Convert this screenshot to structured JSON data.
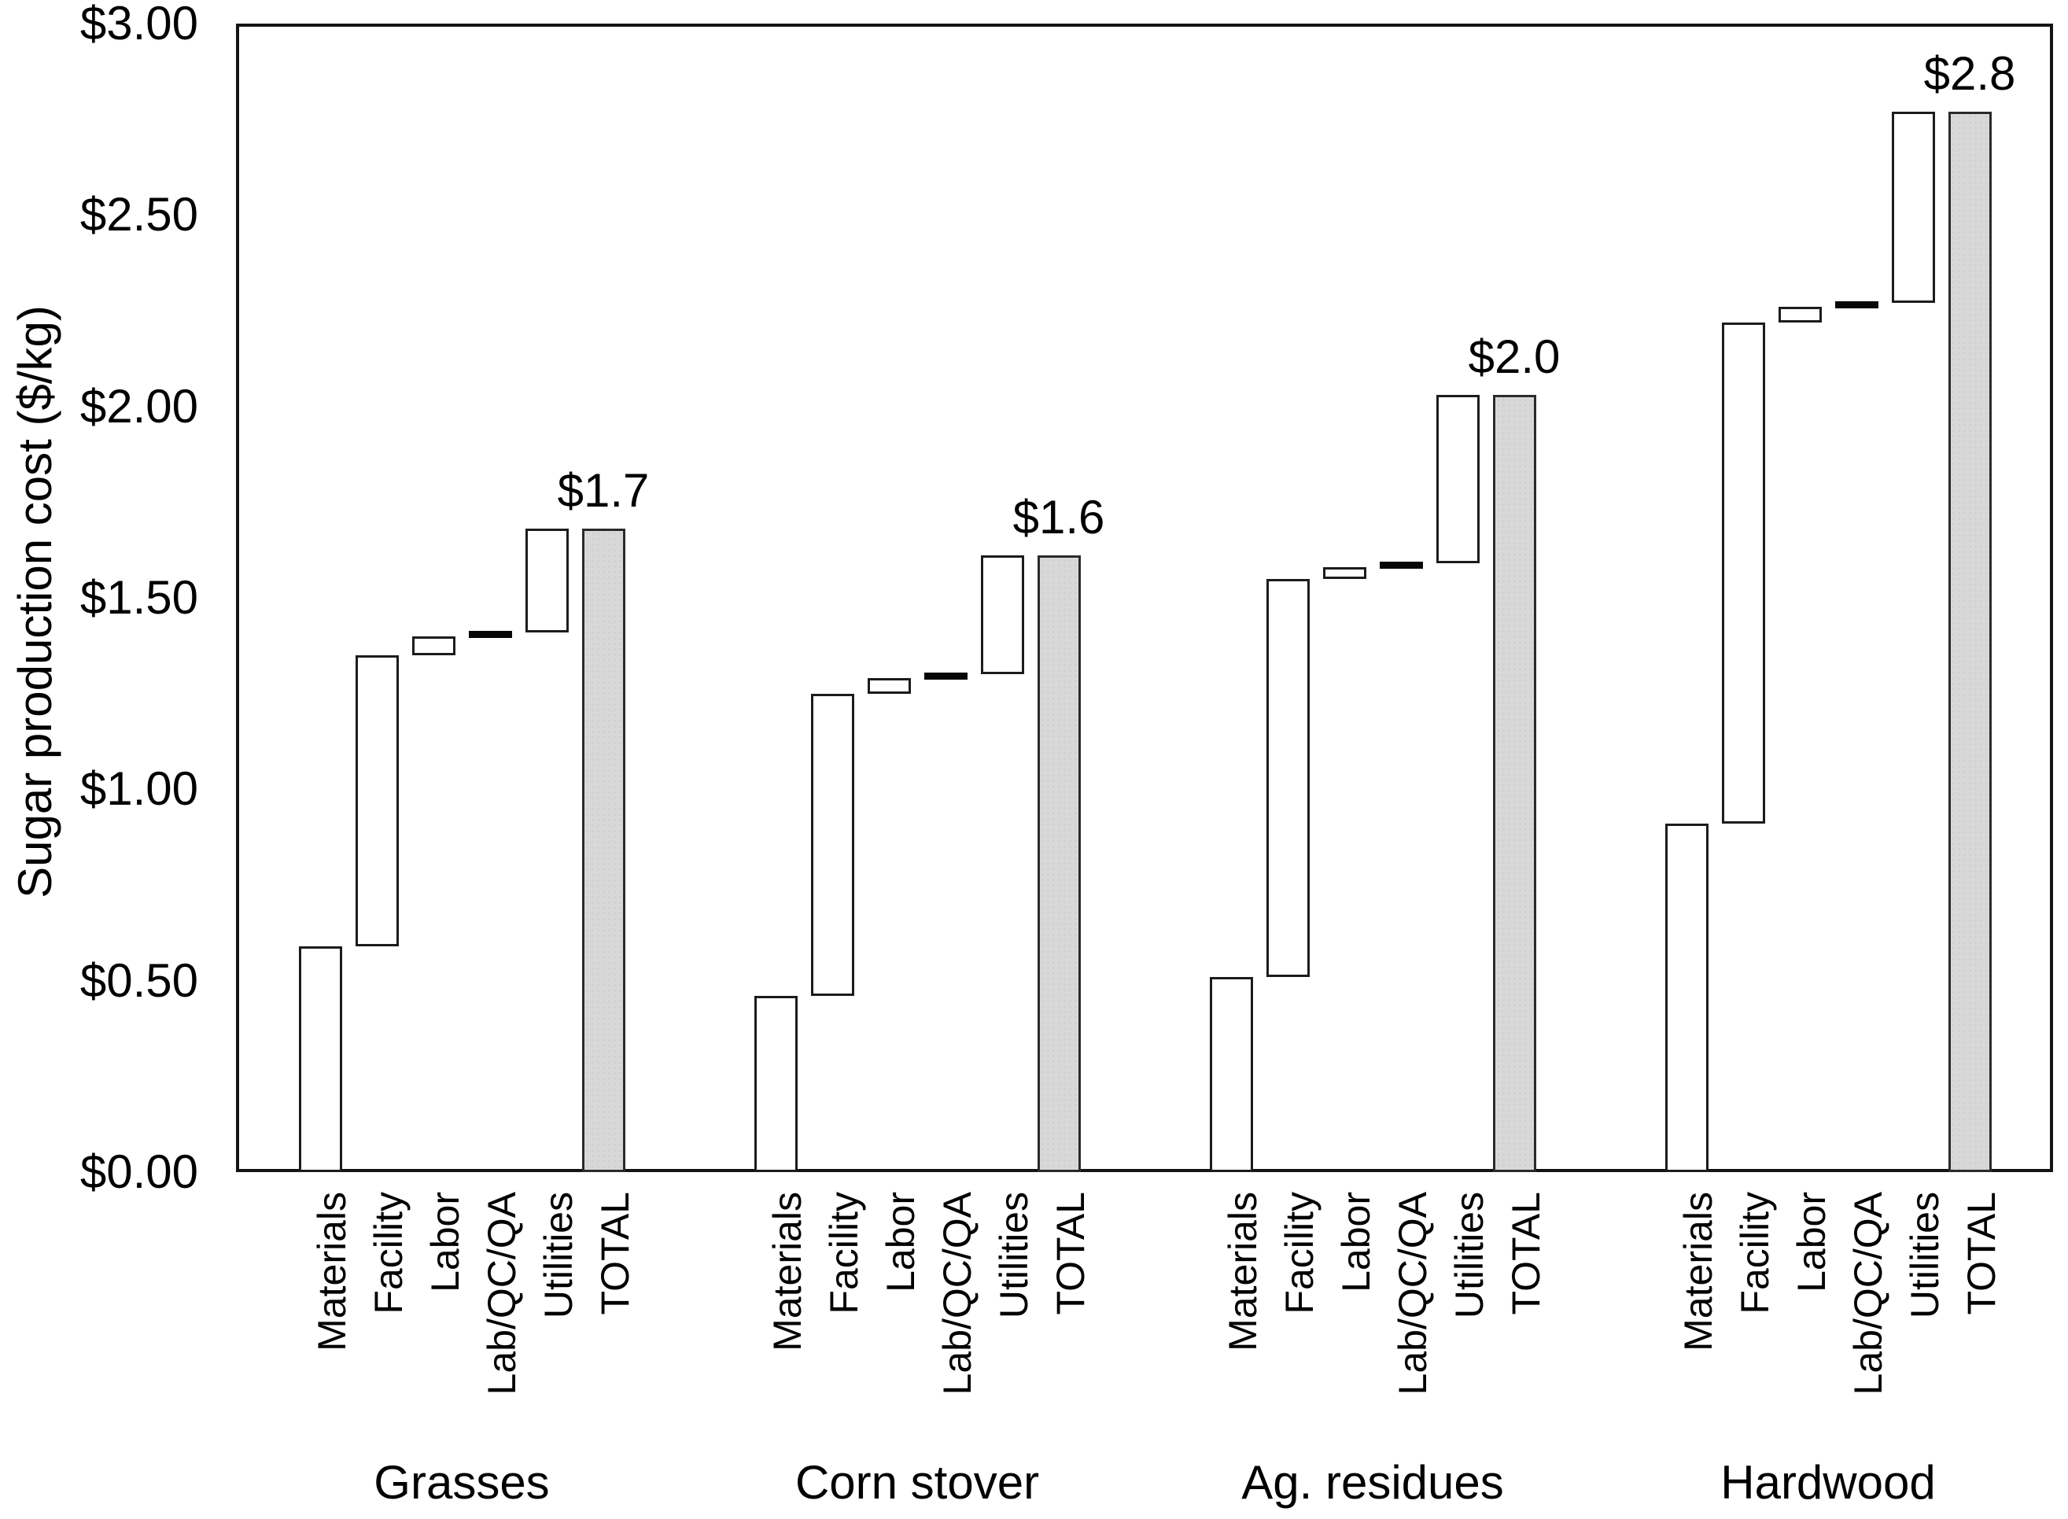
{
  "chart_data": {
    "type": "bar",
    "subtype": "waterfall-cost-breakdown",
    "title": "",
    "xlabel": "",
    "ylabel": "Sugar production cost ($/kg)",
    "ylim": [
      0,
      3
    ],
    "grid": "off",
    "legend": "none",
    "y_ticks": [
      {
        "value": 3.0,
        "label": "$3.00"
      },
      {
        "value": 2.5,
        "label": "$2.50"
      },
      {
        "value": 2.0,
        "label": "$2.00"
      },
      {
        "value": 1.5,
        "label": "$1.50"
      },
      {
        "value": 1.0,
        "label": "$1.00"
      },
      {
        "value": 0.5,
        "label": "$0.50"
      },
      {
        "value": 0.0,
        "label": "$0.00"
      }
    ],
    "categories": [
      "Materials",
      "Facility",
      "Labor",
      "Lab/QC/QA",
      "Utilities",
      "TOTAL"
    ],
    "groups": [
      {
        "name": "Grasses",
        "total": 1.68,
        "total_label": "$1.7",
        "segments": [
          {
            "category": "Materials",
            "start": 0.0,
            "end": 0.59,
            "style": "box"
          },
          {
            "category": "Facility",
            "start": 0.59,
            "end": 1.35,
            "style": "box"
          },
          {
            "category": "Labor",
            "start": 1.35,
            "end": 1.4,
            "style": "box"
          },
          {
            "category": "Lab/QC/QA",
            "start": 1.4,
            "end": 1.41,
            "style": "dash"
          },
          {
            "category": "Utilities",
            "start": 1.41,
            "end": 1.68,
            "style": "box"
          },
          {
            "category": "TOTAL",
            "start": 0.0,
            "end": 1.68,
            "style": "total"
          }
        ]
      },
      {
        "name": "Corn stover",
        "total": 1.61,
        "total_label": "$1.6",
        "segments": [
          {
            "category": "Materials",
            "start": 0.0,
            "end": 0.46,
            "style": "box"
          },
          {
            "category": "Facility",
            "start": 0.46,
            "end": 1.25,
            "style": "box"
          },
          {
            "category": "Labor",
            "start": 1.25,
            "end": 1.29,
            "style": "box"
          },
          {
            "category": "Lab/QC/QA",
            "start": 1.29,
            "end": 1.3,
            "style": "dash"
          },
          {
            "category": "Utilities",
            "start": 1.3,
            "end": 1.61,
            "style": "box"
          },
          {
            "category": "TOTAL",
            "start": 0.0,
            "end": 1.61,
            "style": "total"
          }
        ]
      },
      {
        "name": "Ag. residues",
        "total": 2.03,
        "total_label": "$2.0",
        "segments": [
          {
            "category": "Materials",
            "start": 0.0,
            "end": 0.51,
            "style": "box"
          },
          {
            "category": "Facility",
            "start": 0.51,
            "end": 1.55,
            "style": "box"
          },
          {
            "category": "Labor",
            "start": 1.55,
            "end": 1.58,
            "style": "box"
          },
          {
            "category": "Lab/QC/QA",
            "start": 1.58,
            "end": 1.59,
            "style": "dash"
          },
          {
            "category": "Utilities",
            "start": 1.59,
            "end": 2.03,
            "style": "box"
          },
          {
            "category": "TOTAL",
            "start": 0.0,
            "end": 2.03,
            "style": "total"
          }
        ]
      },
      {
        "name": "Hardwood",
        "total": 2.77,
        "total_label": "$2.8",
        "segments": [
          {
            "category": "Materials",
            "start": 0.0,
            "end": 0.91,
            "style": "box"
          },
          {
            "category": "Facility",
            "start": 0.91,
            "end": 2.22,
            "style": "box"
          },
          {
            "category": "Labor",
            "start": 2.22,
            "end": 2.26,
            "style": "box"
          },
          {
            "category": "Lab/QC/QA",
            "start": 2.26,
            "end": 2.27,
            "style": "dash"
          },
          {
            "category": "Utilities",
            "start": 2.27,
            "end": 2.77,
            "style": "box"
          },
          {
            "category": "TOTAL",
            "start": 0.0,
            "end": 2.77,
            "style": "total"
          }
        ]
      }
    ],
    "colors": {
      "component_bar_fill": "#ffffff",
      "component_bar_border": "#1c1c1c",
      "total_bar_fill": "#d8d8d8",
      "total_bar_border": "#2a2a2a",
      "dash_bar": "#070707",
      "plot_border": "#141414",
      "text": "#000000",
      "background": "#ffffff"
    }
  }
}
